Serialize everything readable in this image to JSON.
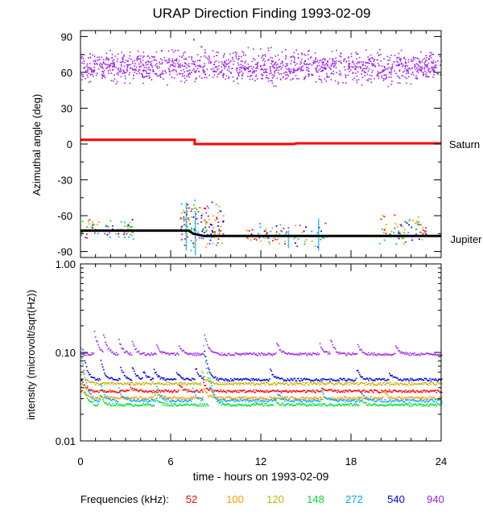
{
  "chart_data": [
    {
      "type": "scatter",
      "title": "URAP Direction Finding  1993-02-09",
      "ylabel": "Azimuthal angle (deg)",
      "xlim": [
        0,
        24
      ],
      "ylim": [
        -95,
        95
      ],
      "yticks": [
        90,
        60,
        30,
        0,
        -30,
        -60,
        -90
      ],
      "ytick_labels": [
        "90",
        "60",
        "30",
        "0",
        "-30",
        "-60",
        "-90"
      ],
      "reference_lines": [
        {
          "name": "Saturn",
          "color": "#ff0000",
          "points": [
            [
              0,
              3.5
            ],
            [
              7.6,
              3.5
            ],
            [
              7.6,
              0
            ],
            [
              14.2,
              0
            ],
            [
              14.4,
              0.6
            ],
            [
              24,
              0.6
            ]
          ]
        },
        {
          "name": "Jupiter",
          "color": "#000000",
          "points": [
            [
              0,
              -72.5
            ],
            [
              7.2,
              -72.5
            ],
            [
              7.5,
              -75
            ],
            [
              8.2,
              -77
            ],
            [
              24,
              -77
            ]
          ]
        }
      ],
      "scatter_groups": [
        {
          "name": "940 kHz band",
          "color": "#a020f0",
          "x": [
            0,
            24
          ],
          "y_center": 65,
          "y_spread": 10
        },
        {
          "name": "Jupiter cluster 1",
          "x": [
            0,
            3.5
          ],
          "y": [
            -80,
            -62
          ]
        },
        {
          "name": "Jupiter cluster 2",
          "x": [
            6.6,
            9.5
          ],
          "y": [
            -90,
            -46
          ]
        },
        {
          "name": "Jupiter cluster 3",
          "x": [
            11,
            16.5
          ],
          "y": [
            -86,
            -64
          ]
        },
        {
          "name": "Jupiter cluster 4",
          "x": [
            19.8,
            23
          ],
          "y": [
            -84,
            -58
          ]
        }
      ]
    },
    {
      "type": "line",
      "ylabel": "intensity (microvolt/sqrt(Hz))",
      "xlabel": "time - hours on 1993-02-09",
      "xlim": [
        0,
        24
      ],
      "xticks": [
        0,
        6,
        12,
        18,
        24
      ],
      "xtick_labels": [
        "0",
        "6",
        "12",
        "18",
        "24"
      ],
      "yscale": "log",
      "ylim": [
        0.01,
        1.0
      ],
      "yticks": [
        1.0,
        0.1,
        0.01
      ],
      "ytick_labels": [
        "1.00",
        "0.10",
        "0.01"
      ],
      "series": [
        {
          "name": "52",
          "color": "#ff0000",
          "baseline": 0.037
        },
        {
          "name": "100",
          "color": "#ff9900",
          "baseline": 0.031
        },
        {
          "name": "120",
          "color": "#c8b400",
          "baseline": 0.045
        },
        {
          "name": "148",
          "color": "#00e030",
          "baseline": 0.026
        },
        {
          "name": "272",
          "color": "#00a8ff",
          "baseline": 0.029
        },
        {
          "name": "540",
          "color": "#0000ee",
          "baseline": 0.05
        },
        {
          "name": "940",
          "color": "#a020f0",
          "baseline": 0.097
        }
      ]
    }
  ],
  "legend": {
    "label": "Frequencies (kHz):",
    "items": [
      {
        "text": "52",
        "color": "#ff0000"
      },
      {
        "text": "100",
        "color": "#ff9900"
      },
      {
        "text": "120",
        "color": "#c8b400"
      },
      {
        "text": "148",
        "color": "#00e030"
      },
      {
        "text": "272",
        "color": "#00a8ff"
      },
      {
        "text": "540",
        "color": "#0000ee"
      },
      {
        "text": "940",
        "color": "#a020f0"
      }
    ]
  }
}
